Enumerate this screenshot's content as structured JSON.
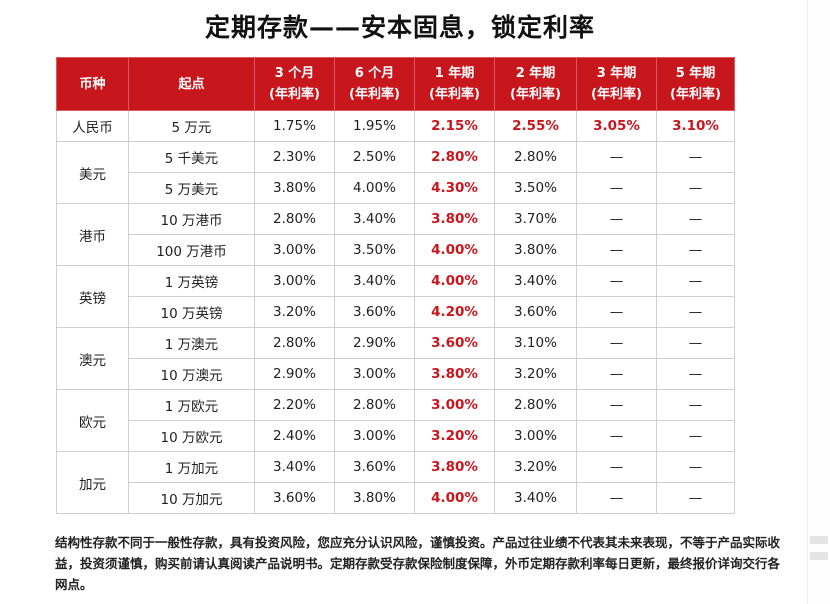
{
  "title": "定期存款——安本固息，锁定利率",
  "table": {
    "headers": [
      {
        "line1": "币种",
        "line2": ""
      },
      {
        "line1": "起点",
        "line2": ""
      },
      {
        "line1": "3 个月",
        "line2": "(年利率)"
      },
      {
        "line1": "6 个月",
        "line2": "(年利率)"
      },
      {
        "line1": "1 年期",
        "line2": "(年利率)"
      },
      {
        "line1": "2 年期",
        "line2": "(年利率)"
      },
      {
        "line1": "3 年期",
        "line2": "(年利率)"
      },
      {
        "line1": "5 年期",
        "line2": "(年利率)"
      }
    ],
    "groups": [
      {
        "currency": "人民币",
        "rows": [
          {
            "start": "5 万元",
            "rates": [
              "1.75%",
              "1.95%",
              "2.15%",
              "2.55%",
              "3.05%",
              "3.10%"
            ],
            "highlight": [
              false,
              false,
              true,
              true,
              true,
              true
            ]
          }
        ]
      },
      {
        "currency": "美元",
        "rows": [
          {
            "start": "5 千美元",
            "rates": [
              "2.30%",
              "2.50%",
              "2.80%",
              "2.80%",
              "—",
              "—"
            ],
            "highlight": [
              false,
              false,
              true,
              false,
              false,
              false
            ]
          },
          {
            "start": "5 万美元",
            "rates": [
              "3.80%",
              "4.00%",
              "4.30%",
              "3.50%",
              "—",
              "—"
            ],
            "highlight": [
              false,
              false,
              true,
              false,
              false,
              false
            ]
          }
        ]
      },
      {
        "currency": "港币",
        "rows": [
          {
            "start": "10 万港币",
            "rates": [
              "2.80%",
              "3.40%",
              "3.80%",
              "3.70%",
              "—",
              "—"
            ],
            "highlight": [
              false,
              false,
              true,
              false,
              false,
              false
            ]
          },
          {
            "start": "100 万港币",
            "rates": [
              "3.00%",
              "3.50%",
              "4.00%",
              "3.80%",
              "—",
              "—"
            ],
            "highlight": [
              false,
              false,
              true,
              false,
              false,
              false
            ]
          }
        ]
      },
      {
        "currency": "英镑",
        "rows": [
          {
            "start": "1 万英镑",
            "rates": [
              "3.00%",
              "3.40%",
              "4.00%",
              "3.40%",
              "—",
              "—"
            ],
            "highlight": [
              false,
              false,
              true,
              false,
              false,
              false
            ]
          },
          {
            "start": "10 万英镑",
            "rates": [
              "3.20%",
              "3.60%",
              "4.20%",
              "3.60%",
              "—",
              "—"
            ],
            "highlight": [
              false,
              false,
              true,
              false,
              false,
              false
            ]
          }
        ]
      },
      {
        "currency": "澳元",
        "rows": [
          {
            "start": "1 万澳元",
            "rates": [
              "2.80%",
              "2.90%",
              "3.60%",
              "3.10%",
              "—",
              "—"
            ],
            "highlight": [
              false,
              false,
              true,
              false,
              false,
              false
            ]
          },
          {
            "start": "10 万澳元",
            "rates": [
              "2.90%",
              "3.00%",
              "3.80%",
              "3.20%",
              "—",
              "—"
            ],
            "highlight": [
              false,
              false,
              true,
              false,
              false,
              false
            ]
          }
        ]
      },
      {
        "currency": "欧元",
        "rows": [
          {
            "start": "1 万欧元",
            "rates": [
              "2.20%",
              "2.80%",
              "3.00%",
              "2.80%",
              "—",
              "—"
            ],
            "highlight": [
              false,
              false,
              true,
              false,
              false,
              false
            ]
          },
          {
            "start": "10 万欧元",
            "rates": [
              "2.40%",
              "3.00%",
              "3.20%",
              "3.00%",
              "—",
              "—"
            ],
            "highlight": [
              false,
              false,
              true,
              false,
              false,
              false
            ]
          }
        ]
      },
      {
        "currency": "加元",
        "rows": [
          {
            "start": "1 万加元",
            "rates": [
              "3.40%",
              "3.60%",
              "3.80%",
              "3.20%",
              "—",
              "—"
            ],
            "highlight": [
              false,
              false,
              true,
              false,
              false,
              false
            ]
          },
          {
            "start": "10 万加元",
            "rates": [
              "3.60%",
              "3.80%",
              "4.00%",
              "3.40%",
              "—",
              "—"
            ],
            "highlight": [
              false,
              false,
              true,
              false,
              false,
              false
            ]
          }
        ]
      }
    ]
  },
  "footnote": "结构性存款不同于一般性存款，具有投资风险，您应充分认识风险，谨慎投资。产品过往业绩不代表其未来表现，不等于产品实际收益，投资须谨慎，购买前请认真阅读产品说明书。定期存款受存款保险制度保障，外币定期存款利率每日更新，最终报价详询交行各网点。",
  "colors": {
    "header_bg": "#c8161d",
    "highlight_text": "#c8161d",
    "border": "#cfcfcf"
  }
}
